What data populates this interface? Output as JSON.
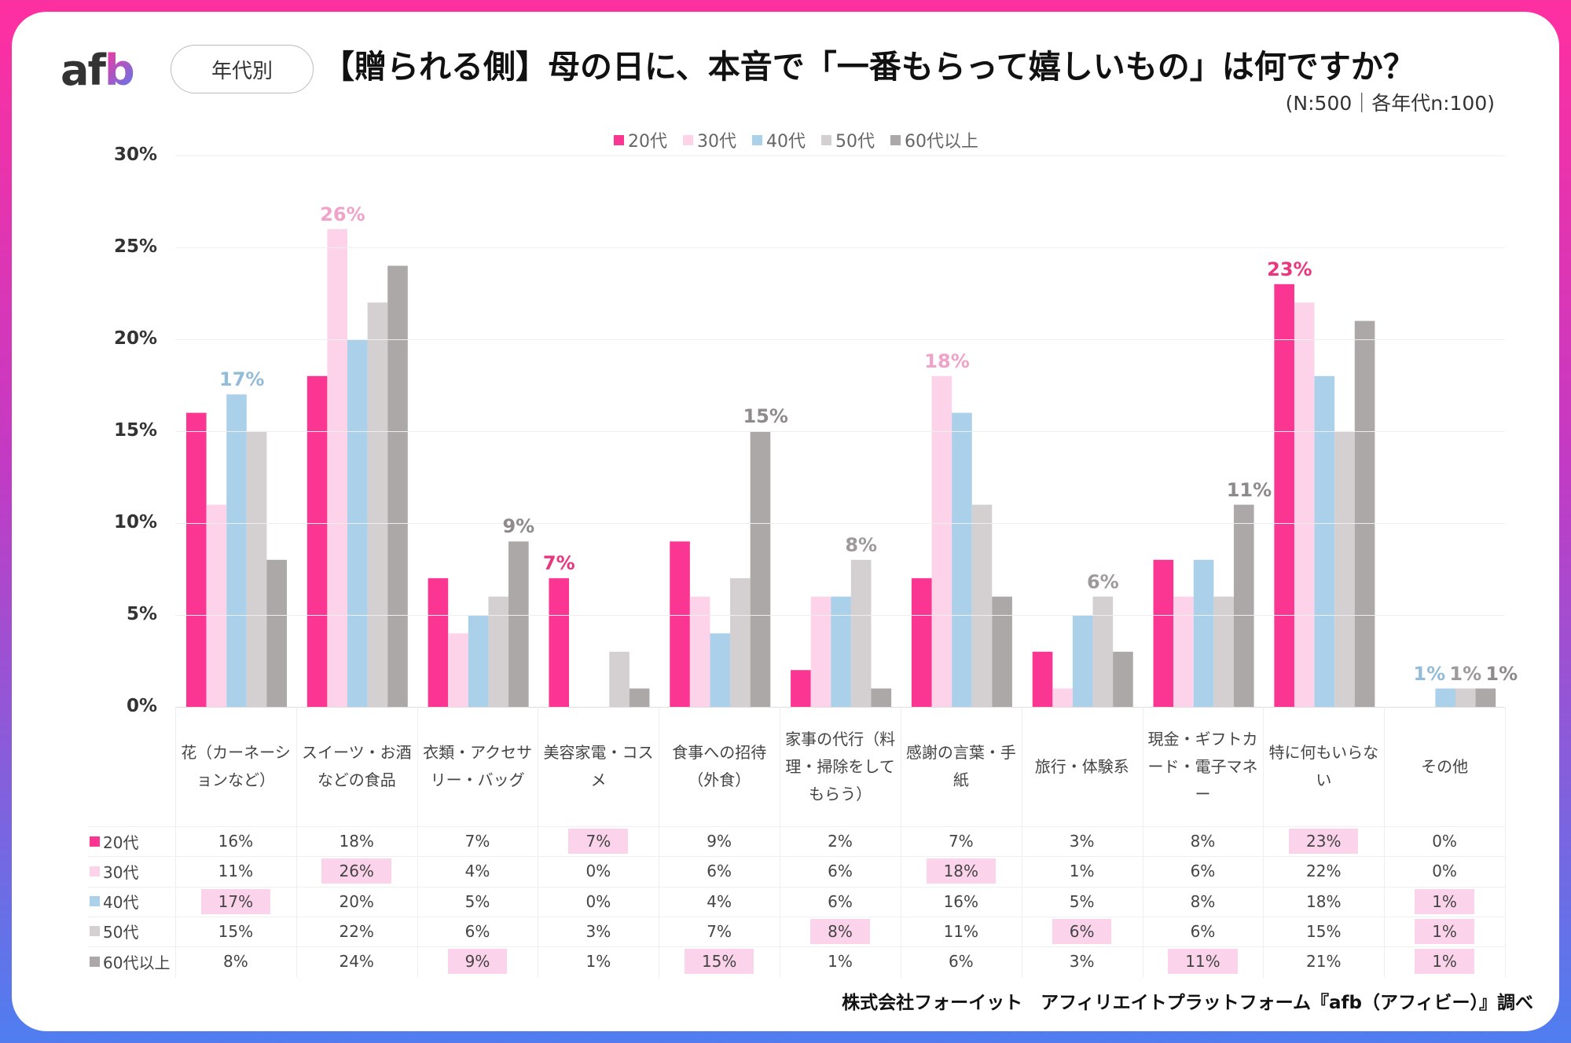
{
  "header": {
    "logo": "afb",
    "pill": "年代別",
    "title": "【贈られる側】母の日に、本音で「一番もらって嬉しいもの」は何ですか？",
    "subtitle": "(N:500｜各年代n:100)"
  },
  "footer": "株式会社フォーイット　アフィリエイトプラットフォーム『afb（アフィビー）』調べ",
  "chart_data": {
    "type": "bar",
    "ylim": [
      0,
      30
    ],
    "yticks": [
      "0%",
      "5%",
      "10%",
      "15%",
      "20%",
      "25%",
      "30%"
    ],
    "grid": true,
    "legend": "top",
    "categories": [
      "花（カーネーションなど）",
      "スイーツ・お酒などの食品",
      "衣類・アクセサリー・バッグ",
      "美容家電・コスメ",
      "食事への招待（外食）",
      "家事の代行（料理・掃除をしてもらう）",
      "感謝の言葉・手紙",
      "旅行・体験系",
      "現金・ギフトカード・電子マネー",
      "特に何もいらない",
      "その他"
    ],
    "series": [
      {
        "name": "20代",
        "color": "#fb3592",
        "label_color": "#e8367f",
        "values": [
          16,
          18,
          7,
          7,
          9,
          2,
          7,
          3,
          8,
          23,
          0
        ]
      },
      {
        "name": "30代",
        "color": "#fdd3ea",
        "label_color": "#f0a3c9",
        "values": [
          11,
          26,
          4,
          0,
          6,
          6,
          18,
          1,
          6,
          22,
          0
        ]
      },
      {
        "name": "40代",
        "color": "#abd0ea",
        "label_color": "#93bcd9",
        "values": [
          17,
          20,
          5,
          0,
          4,
          6,
          16,
          5,
          8,
          18,
          1
        ]
      },
      {
        "name": "50代",
        "color": "#d4d0d1",
        "label_color": "#9e9a9b",
        "values": [
          15,
          22,
          6,
          3,
          7,
          8,
          11,
          6,
          6,
          15,
          1
        ]
      },
      {
        "name": "60代以上",
        "color": "#aca8a7",
        "label_color": "#8f8b8a",
        "values": [
          8,
          24,
          9,
          1,
          15,
          1,
          6,
          3,
          11,
          21,
          1
        ]
      }
    ],
    "highlight_color": "#fbd3ea"
  }
}
